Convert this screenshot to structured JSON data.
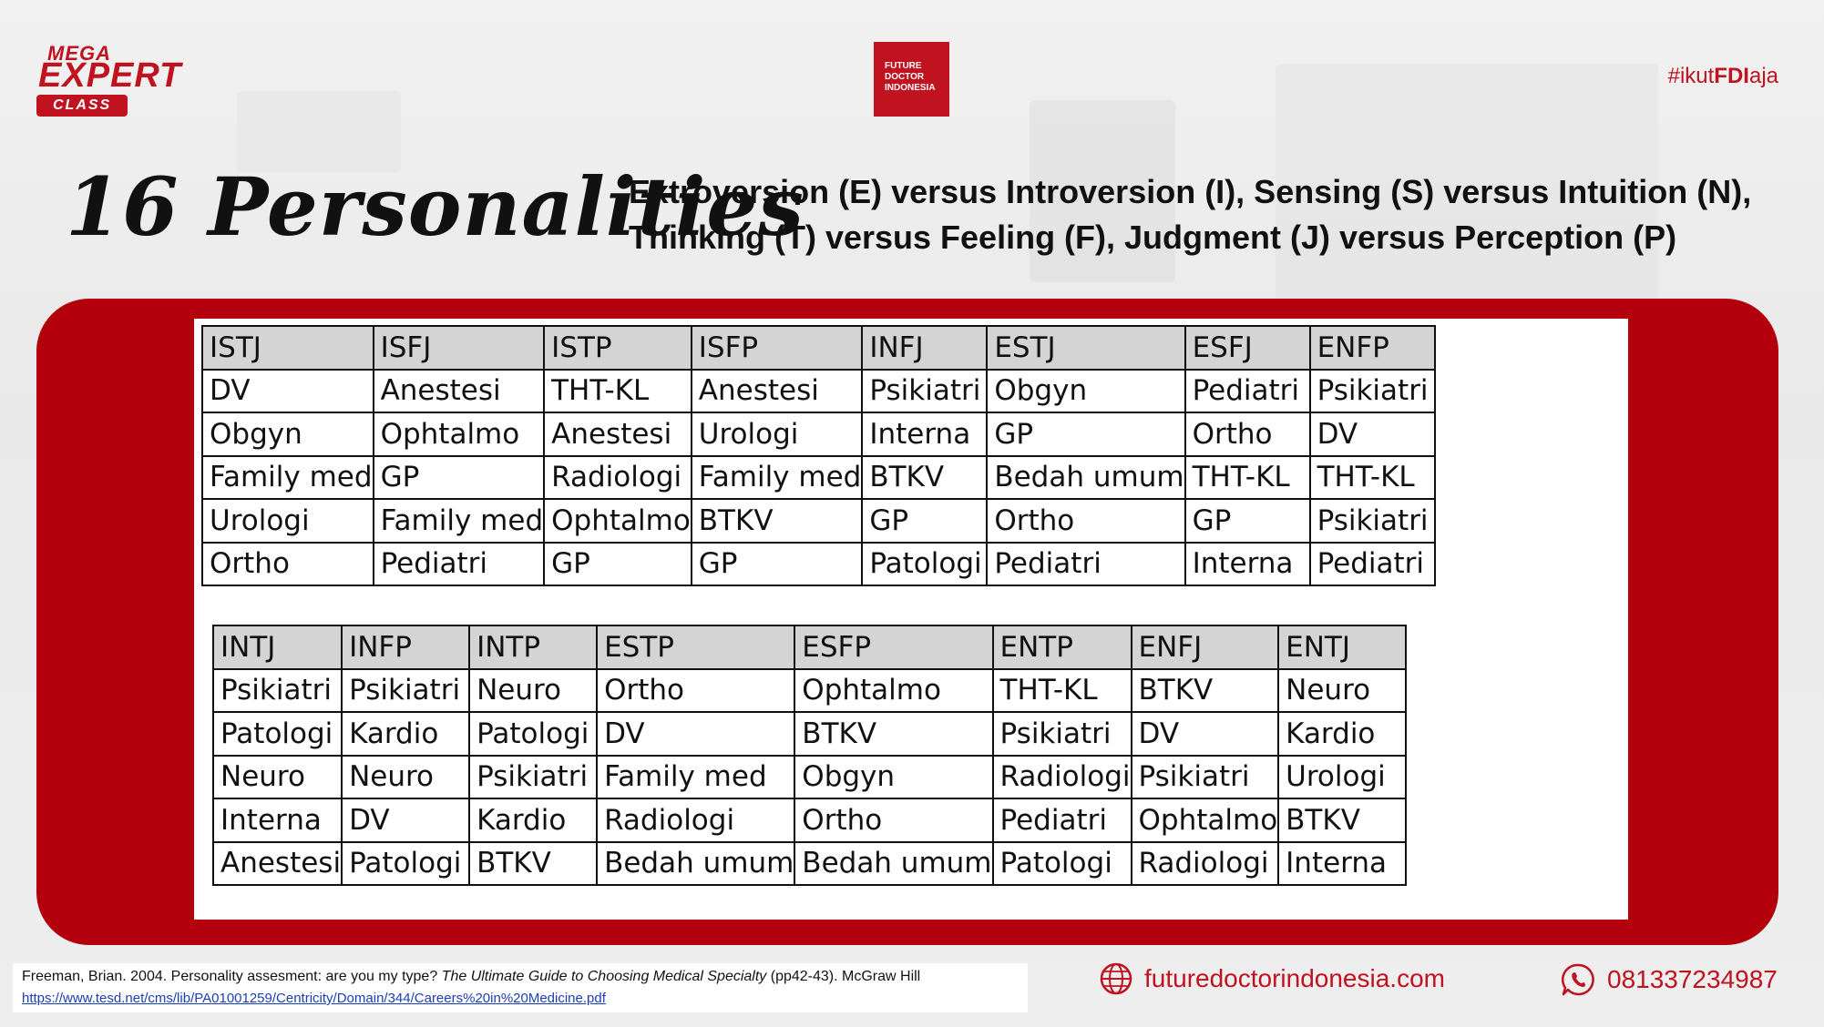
{
  "header": {
    "logo_mega": {
      "line1": "MEGA",
      "line2": "EXPERT",
      "line3": "CLASS"
    },
    "logo_fdi": {
      "line1": "FUTURE",
      "line2": "DOCTOR",
      "line3": "INDONESIA"
    },
    "hashtag": {
      "prefix": "#ikut",
      "bold": "FDI",
      "suffix": "aja"
    }
  },
  "title": "16 Personalities",
  "subtitle": {
    "line1": "Extroversion (E) versus Introversion (I), Sensing (S) versus Intuition (N),",
    "line2": "Thinking (T) versus Feeling (F), Judgment (J) versus Perception (P)"
  },
  "table1": {
    "headers": [
      "ISTJ",
      "ISFJ",
      "ISTP",
      "ISFP",
      "INFJ",
      "ESTJ",
      "ESFJ",
      "ENFP"
    ],
    "rows": [
      [
        "DV",
        "Anestesi",
        "THT-KL",
        "Anestesi",
        "Psikiatri",
        "Obgyn",
        "Pediatri",
        "Psikiatri"
      ],
      [
        "Obgyn",
        "Ophtalmo",
        "Anestesi",
        "Urologi",
        "Interna",
        "GP",
        "Ortho",
        "DV"
      ],
      [
        "Family med",
        "GP",
        "Radiologi",
        "Family med",
        "BTKV",
        "Bedah umum",
        "THT-KL",
        "THT-KL"
      ],
      [
        "Urologi",
        "Family med",
        "Ophtalmo",
        "BTKV",
        "GP",
        "Ortho",
        "GP",
        "Psikiatri"
      ],
      [
        "Ortho",
        "Pediatri",
        "GP",
        "GP",
        "Patologi",
        "Pediatri",
        "Interna",
        "Pediatri"
      ]
    ]
  },
  "table2": {
    "headers": [
      "INTJ",
      "INFP",
      "INTP",
      "ESTP",
      "ESFP",
      "ENTP",
      "ENFJ",
      "ENTJ"
    ],
    "rows": [
      [
        "Psikiatri",
        "Psikiatri",
        "Neuro",
        "Ortho",
        "Ophtalmo",
        "THT-KL",
        "BTKV",
        "Neuro"
      ],
      [
        "Patologi",
        "Kardio",
        "Patologi",
        "DV",
        "BTKV",
        "Psikiatri",
        "DV",
        "Kardio"
      ],
      [
        "Neuro",
        "Neuro",
        "Psikiatri",
        "Family med",
        "Obgyn",
        "Radiologi",
        "Psikiatri",
        "Urologi"
      ],
      [
        "Interna",
        "DV",
        "Kardio",
        "Radiologi",
        "Ortho",
        "Pediatri",
        "Ophtalmo",
        "BTKV"
      ],
      [
        "Anestesi",
        "Patologi",
        "BTKV",
        "Bedah umum",
        "Bedah umum",
        "Patologi",
        "Radiologi",
        "Interna"
      ]
    ]
  },
  "footer": {
    "citation_prefix": "Freeman, Brian. 2004. Personality assesment: are you my type? ",
    "citation_italic": "The Ultimate Guide to Choosing Medical Specialty",
    "citation_suffix": " (pp42-43). McGraw Hill",
    "citation_url": "https://www.tesd.net/cms/lib/PA01001259/Centricity/Domain/344/Careers%20in%20Medicine.pdf",
    "website": "futuredoctorindonesia.com",
    "phone": "081337234987",
    "website_icon": "globe-icon",
    "phone_icon": "whatsapp-icon"
  },
  "colors": {
    "brand_red": "#c1121f",
    "panel_red": "#b3000c",
    "header_cell": "#d4d4d4"
  }
}
